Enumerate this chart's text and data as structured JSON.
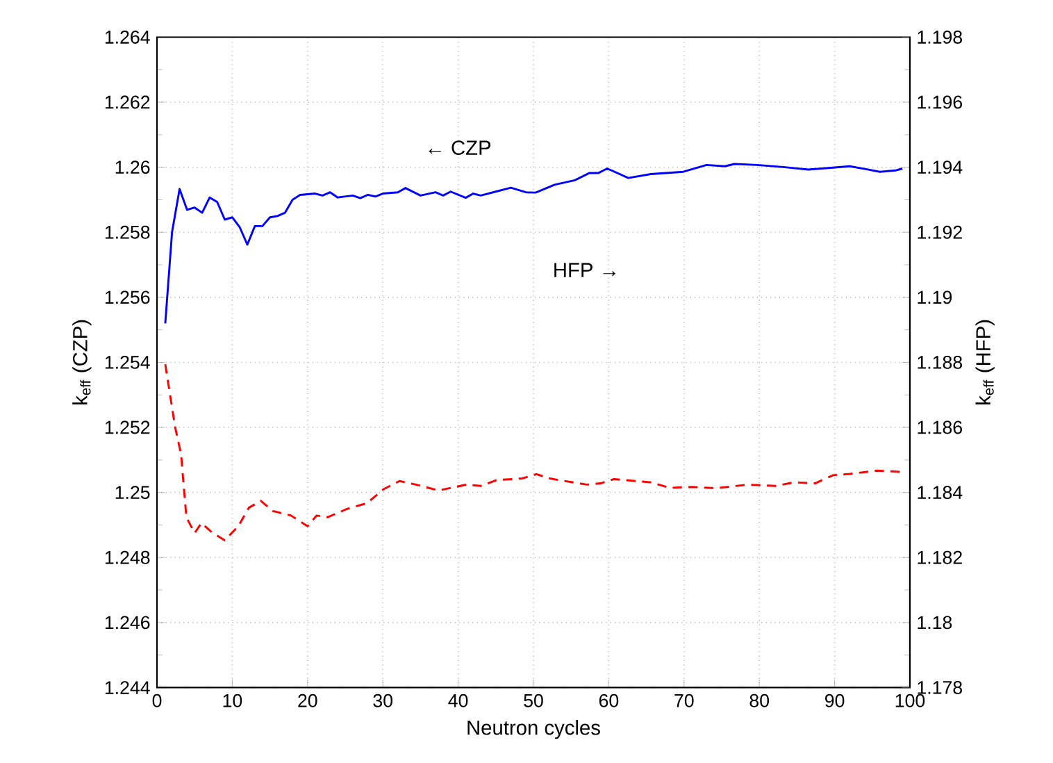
{
  "chart_data": {
    "type": "line",
    "xlabel": "Neutron cycles",
    "ylabel": "k$_{eff}$ (CZP)",
    "y2label": "k$_{eff}$ (HFP)",
    "xlim": [
      0,
      100
    ],
    "xticks": [
      0,
      10,
      20,
      30,
      40,
      50,
      60,
      70,
      80,
      90,
      100
    ],
    "ylim": [
      1.244,
      1.264
    ],
    "yticks": [
      1.244,
      1.246,
      1.248,
      1.25,
      1.252,
      1.254,
      1.256,
      1.258,
      1.26,
      1.262,
      1.264
    ],
    "y2lim": [
      1.178,
      1.198
    ],
    "y2ticks": [
      1.178,
      1.18,
      1.182,
      1.184,
      1.186,
      1.188,
      1.19,
      1.192,
      1.194,
      1.196,
      1.198
    ],
    "grid": true,
    "series": [
      {
        "color": "#0000ff",
        "line_style": "solid",
        "axis": "y",
        "x": [
          1.1,
          2,
          3,
          4,
          5,
          6,
          7,
          8,
          9,
          10,
          11,
          12,
          13,
          14,
          15,
          16,
          17,
          18,
          19,
          21,
          22,
          23,
          24,
          26,
          27,
          28,
          29,
          30,
          32,
          33,
          35,
          37,
          38,
          39,
          41,
          42,
          43,
          45,
          47,
          49,
          50.3,
          52.8,
          55.5,
          57.4,
          58.6,
          59.8,
          62.6,
          65.6,
          69.9,
          73,
          75.4,
          76.7,
          79.7,
          83.4,
          86.5,
          88.9,
          92,
          94.4,
          96,
          98.1,
          99
        ],
        "values": [
          1.2552,
          1.258,
          1.25933,
          1.25869,
          1.25876,
          1.2586,
          1.25907,
          1.25893,
          1.25839,
          1.25846,
          1.25815,
          1.25762,
          1.25819,
          1.25819,
          1.25846,
          1.2585,
          1.2586,
          1.259,
          1.25915,
          1.25919,
          1.25913,
          1.25923,
          1.25907,
          1.25913,
          1.25905,
          1.25915,
          1.2591,
          1.25919,
          1.25923,
          1.25936,
          1.25913,
          1.25923,
          1.25913,
          1.25925,
          1.25906,
          1.25919,
          1.25913,
          1.25925,
          1.25937,
          1.25923,
          1.25922,
          1.25946,
          1.2596,
          1.25982,
          1.25982,
          1.25996,
          1.25967,
          1.25979,
          1.25986,
          1.26007,
          1.26003,
          1.2601,
          1.26007,
          1.26,
          1.25993,
          1.25997,
          1.26003,
          1.25993,
          1.25986,
          1.2599,
          1.25996
        ]
      },
      {
        "color": "#ff0000",
        "line_style": "dashed",
        "axis": "y2",
        "x": [
          1.1,
          2.4,
          3.2,
          3.9,
          5,
          5.9,
          7.4,
          9,
          10.8,
          12.2,
          13.8,
          15.4,
          17.8,
          20,
          21.2,
          22.7,
          25.2,
          27.9,
          30.1,
          32.2,
          34.4,
          37.4,
          41.1,
          43,
          45.1,
          48.5,
          50.4,
          52.2,
          53.4,
          57.1,
          58.9,
          60.7,
          65.6,
          68.1,
          71.1,
          74.2,
          78.5,
          82.2,
          84.6,
          87.4,
          89.8,
          92,
          95.6,
          99
        ],
        "values": [
          1.18794,
          1.18602,
          1.18517,
          1.18324,
          1.18275,
          1.18306,
          1.18275,
          1.18253,
          1.18296,
          1.18353,
          1.18374,
          1.18343,
          1.18329,
          1.18296,
          1.18329,
          1.18324,
          1.18349,
          1.18367,
          1.1841,
          1.18435,
          1.18424,
          1.18406,
          1.18424,
          1.1842,
          1.18438,
          1.18443,
          1.18456,
          1.18443,
          1.18438,
          1.18424,
          1.18428,
          1.18441,
          1.18431,
          1.18414,
          1.18417,
          1.18413,
          1.18424,
          1.1842,
          1.18431,
          1.18428,
          1.18453,
          1.18457,
          1.18467,
          1.18463
        ]
      }
    ],
    "annotations": [
      "← CZP",
      "HFP →"
    ]
  }
}
